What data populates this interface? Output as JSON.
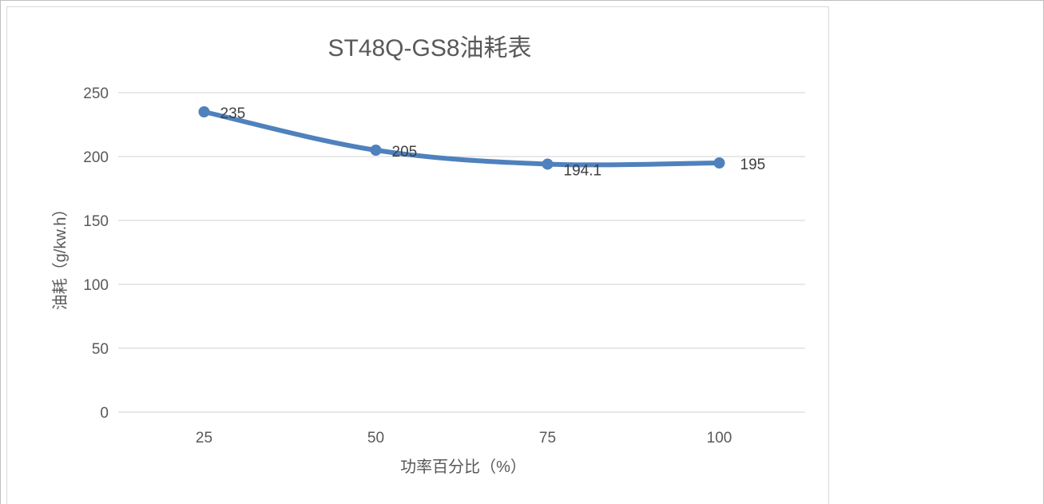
{
  "chart_data": {
    "type": "line",
    "title": "ST48Q-GS8油耗表",
    "xlabel": "功率百分比（%）",
    "ylabel": "油耗（g/kw.h）",
    "categories": [
      "25",
      "50",
      "75",
      "100"
    ],
    "series": [
      {
        "values": [
          235,
          205,
          194.1,
          195
        ],
        "data_labels": [
          "235",
          "205",
          "194.1",
          "195"
        ]
      }
    ],
    "ylim": [
      0,
      250
    ],
    "yticks": [
      0,
      50,
      100,
      150,
      200,
      250
    ],
    "ytick_labels": [
      "0",
      "50",
      "100",
      "150",
      "200",
      "250"
    ],
    "grid": true,
    "legend": "none",
    "colors": {
      "line": "#4f81bd",
      "grid": "#d9d9d9",
      "text": "#595959",
      "label": "#404040"
    }
  }
}
